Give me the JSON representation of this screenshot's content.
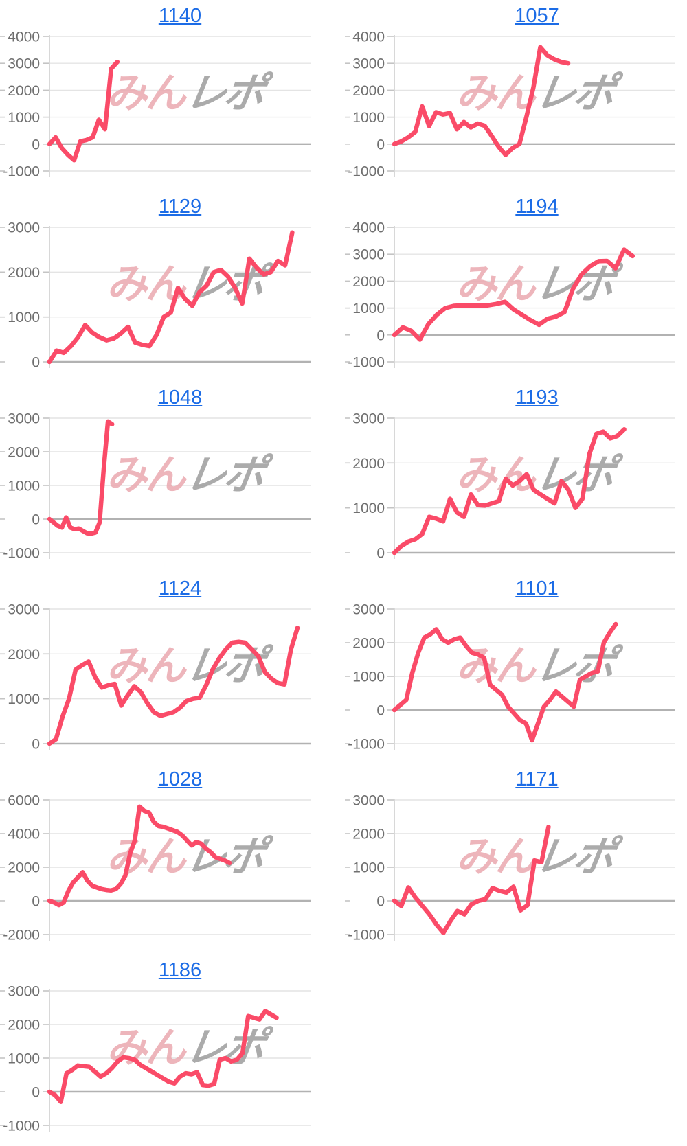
{
  "page": {
    "background": "#ffffff",
    "description_labels": {
      "watermark_pink": "みん",
      "watermark_gray": "レポ"
    }
  },
  "style": {
    "link_color": "#1c6ce6",
    "line_color": "#fa4b68",
    "grid_color": "#e4e4e4",
    "zero_line_color": "#b2b2b2",
    "axis_color": "#d8d8d8",
    "tick_color": "#c4c4c4",
    "label_color": "#6f6f6f",
    "watermark_pink_color": "#eba9b0",
    "watermark_gray_color": "#a2a2a2"
  },
  "chart_data": [
    {
      "type": "line",
      "title": "1140",
      "column": "left",
      "ylim": [
        -1000,
        4000
      ],
      "ytick_step": 1000,
      "yticks": [
        4000,
        3000,
        2000,
        1000,
        0,
        -1000
      ],
      "grid": true,
      "legend": "none",
      "x_end_frac": 0.26,
      "values": [
        0,
        250,
        -150,
        -400,
        -600,
        100,
        150,
        250,
        900,
        550,
        2800,
        3050
      ]
    },
    {
      "type": "line",
      "title": "1057",
      "column": "right",
      "ylim": [
        -1000,
        4000
      ],
      "ytick_step": 1000,
      "yticks": [
        4000,
        3000,
        2000,
        1000,
        0,
        -1000
      ],
      "grid": true,
      "legend": "none",
      "x_end_frac": 0.62,
      "values": [
        0,
        100,
        250,
        450,
        1400,
        670,
        1180,
        1100,
        1150,
        550,
        820,
        620,
        760,
        680,
        300,
        -100,
        -400,
        -150,
        0,
        1000,
        2100,
        3600,
        3300,
        3150,
        3050,
        3000
      ]
    },
    {
      "type": "line",
      "title": "1129",
      "column": "left",
      "ylim": [
        0,
        3000
      ],
      "ytick_step": 1000,
      "yticks": [
        3000,
        2000,
        1000,
        0
      ],
      "grid": true,
      "legend": "none",
      "x_end_frac": 0.93,
      "values": [
        0,
        250,
        200,
        350,
        550,
        820,
        650,
        550,
        480,
        520,
        630,
        780,
        430,
        380,
        350,
        600,
        1000,
        1100,
        1650,
        1400,
        1250,
        1550,
        1700,
        2000,
        2050,
        1900,
        1650,
        1300,
        2300,
        2100,
        1950,
        2000,
        2250,
        2150,
        2880
      ]
    },
    {
      "type": "line",
      "title": "1194",
      "column": "right",
      "ylim": [
        -1000,
        4000
      ],
      "ytick_step": 1000,
      "yticks": [
        4000,
        3000,
        2000,
        1000,
        0,
        -1000
      ],
      "grid": true,
      "legend": "none",
      "x_end_frac": 0.85,
      "values": [
        0,
        280,
        150,
        -170,
        400,
        750,
        1000,
        1080,
        1100,
        1100,
        1090,
        1100,
        1150,
        1230,
        950,
        750,
        550,
        380,
        600,
        680,
        850,
        1720,
        2250,
        2550,
        2740,
        2750,
        2480,
        3170,
        2930
      ]
    },
    {
      "type": "line",
      "title": "1048",
      "column": "left",
      "ylim": [
        -1000,
        3000
      ],
      "ytick_step": 1000,
      "yticks": [
        3000,
        2000,
        1000,
        0,
        -1000
      ],
      "grid": true,
      "legend": "none",
      "x_end_frac": 0.24,
      "values": [
        0,
        -100,
        -200,
        -250,
        50,
        -250,
        -300,
        -280,
        -350,
        -420,
        -430,
        -400,
        -100,
        1500,
        2900,
        2820
      ]
    },
    {
      "type": "line",
      "title": "1193",
      "column": "right",
      "ylim": [
        0,
        3000
      ],
      "ytick_step": 1000,
      "yticks": [
        3000,
        2000,
        1000,
        0
      ],
      "grid": true,
      "legend": "none",
      "x_end_frac": 0.82,
      "values": [
        0,
        150,
        250,
        300,
        420,
        800,
        760,
        700,
        1200,
        900,
        800,
        1300,
        1060,
        1050,
        1100,
        1150,
        1650,
        1500,
        1600,
        1750,
        1400,
        1300,
        1200,
        1100,
        1600,
        1400,
        1000,
        1200,
        2200,
        2650,
        2700,
        2550,
        2600,
        2750
      ]
    },
    {
      "type": "line",
      "title": "1124",
      "column": "left",
      "ylim": [
        0,
        3000
      ],
      "ytick_step": 1000,
      "yticks": [
        3000,
        2000,
        1000,
        0
      ],
      "grid": true,
      "legend": "none",
      "x_end_frac": 0.95,
      "values": [
        0,
        100,
        600,
        1000,
        1650,
        1750,
        1830,
        1480,
        1250,
        1300,
        1330,
        850,
        1080,
        1280,
        1150,
        900,
        700,
        620,
        660,
        700,
        800,
        950,
        1000,
        1020,
        1300,
        1650,
        1900,
        2100,
        2250,
        2270,
        2250,
        2100,
        1950,
        1600,
        1450,
        1350,
        1320,
        2100,
        2580
      ]
    },
    {
      "type": "line",
      "title": "1101",
      "column": "right",
      "ylim": [
        -1000,
        3000
      ],
      "ytick_step": 1000,
      "yticks": [
        3000,
        2000,
        1000,
        0,
        -1000
      ],
      "grid": true,
      "legend": "none",
      "x_end_frac": 0.79,
      "values": [
        0,
        150,
        300,
        1100,
        1700,
        2150,
        2250,
        2400,
        2100,
        2000,
        2100,
        2150,
        1900,
        1700,
        1650,
        1550,
        750,
        600,
        450,
        100,
        -100,
        -300,
        -400,
        -900,
        -400,
        100,
        300,
        550,
        400,
        250,
        100,
        900,
        1000,
        1100,
        1150,
        2000,
        2300,
        2550
      ]
    },
    {
      "type": "line",
      "title": "1028",
      "column": "left",
      "ylim": [
        -2000,
        6000
      ],
      "ytick_step": 2000,
      "yticks": [
        6000,
        4000,
        2000,
        0,
        -2000
      ],
      "grid": true,
      "legend": "none",
      "x_end_frac": 0.69,
      "values": [
        0,
        -100,
        -250,
        -100,
        600,
        1100,
        1400,
        1700,
        1200,
        900,
        800,
        700,
        650,
        620,
        700,
        1000,
        1500,
        2800,
        3600,
        5600,
        5350,
        5250,
        4700,
        4450,
        4400,
        4300,
        4200,
        4100,
        3900,
        3600,
        3300,
        3500,
        3400,
        3100,
        2900,
        2600,
        2500,
        2400,
        2250
      ]
    },
    {
      "type": "line",
      "title": "1171",
      "column": "right",
      "ylim": [
        -1000,
        3000
      ],
      "ytick_step": 1000,
      "yticks": [
        3000,
        2000,
        1000,
        0,
        -1000
      ],
      "grid": true,
      "legend": "none",
      "x_end_frac": 0.55,
      "values": [
        0,
        -150,
        400,
        100,
        -150,
        -400,
        -700,
        -950,
        -600,
        -300,
        -400,
        -100,
        0,
        50,
        380,
        300,
        250,
        420,
        -280,
        -130,
        1200,
        1150,
        2200
      ]
    },
    {
      "type": "line",
      "title": "1186",
      "column": "left",
      "ylim": [
        -1000,
        3000
      ],
      "ytick_step": 1000,
      "yticks": [
        3000,
        2000,
        1000,
        0,
        -1000
      ],
      "grid": true,
      "legend": "none",
      "x_end_frac": 0.87,
      "values": [
        0,
        -100,
        -300,
        550,
        650,
        780,
        760,
        740,
        600,
        450,
        550,
        700,
        900,
        1020,
        1000,
        950,
        800,
        700,
        600,
        500,
        400,
        300,
        250,
        450,
        550,
        520,
        580,
        200,
        180,
        230,
        950,
        1000,
        900,
        950,
        1150,
        2250,
        2200,
        2150,
        2400,
        2300,
        2200
      ]
    }
  ]
}
